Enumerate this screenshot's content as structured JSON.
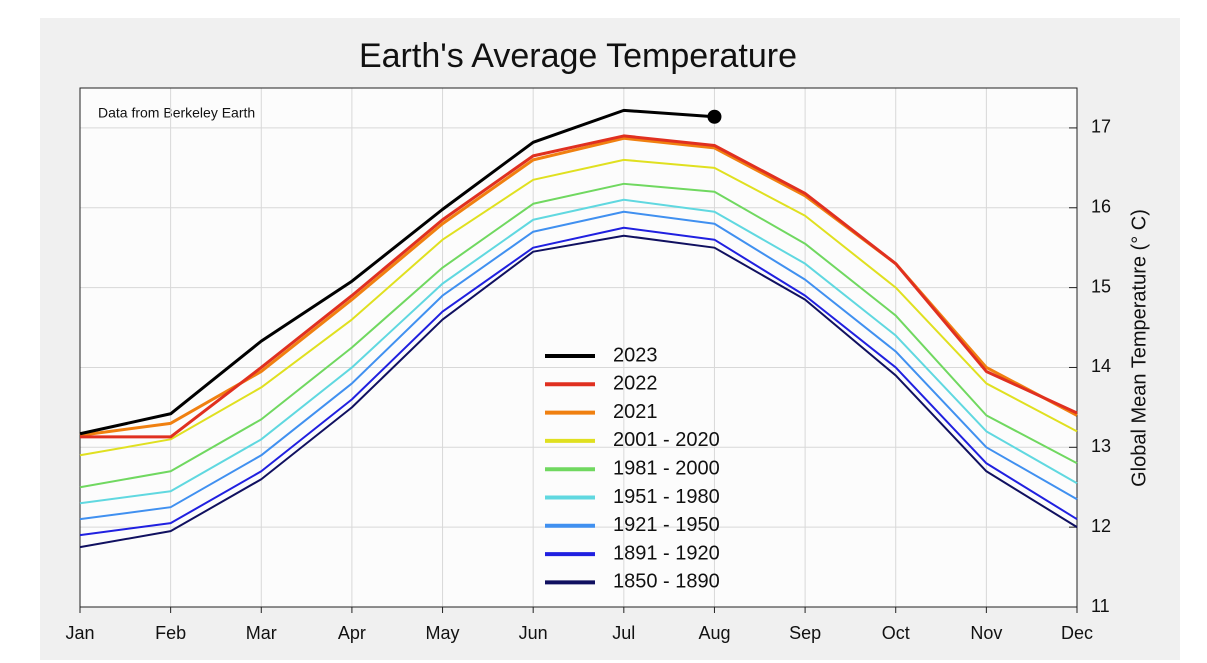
{
  "chart_data": {
    "type": "line",
    "title": "Earth's Average Temperature",
    "annotation": "Data from Berkeley Earth",
    "y_label": "Global Mean Temperature (° C)",
    "categories": [
      "Jan",
      "Feb",
      "Mar",
      "Apr",
      "May",
      "Jun",
      "Jul",
      "Aug",
      "Sep",
      "Oct",
      "Nov",
      "Dec"
    ],
    "ylim": [
      11,
      17.5
    ],
    "yticks": [
      11,
      12,
      13,
      14,
      15,
      16,
      17
    ],
    "y_axis_side": "right",
    "grid": true,
    "legend": "center",
    "series": [
      {
        "name": "2023",
        "color": "#000000",
        "end_marker": true,
        "values": [
          13.17,
          13.42,
          14.33,
          15.08,
          15.98,
          16.82,
          17.22,
          17.14,
          null,
          null,
          null,
          null
        ]
      },
      {
        "name": "2022",
        "color": "#e03020",
        "values": [
          13.13,
          13.13,
          14.0,
          14.9,
          15.85,
          16.65,
          16.9,
          16.78,
          16.18,
          15.3,
          13.95,
          13.43
        ]
      },
      {
        "name": "2021",
        "color": "#f08010",
        "values": [
          13.15,
          13.3,
          13.95,
          14.85,
          15.8,
          16.6,
          16.87,
          16.75,
          16.15,
          15.3,
          14.0,
          13.4
        ]
      },
      {
        "name": "2001 - 2020",
        "color": "#e0e020",
        "values": [
          12.9,
          13.1,
          13.75,
          14.6,
          15.6,
          16.35,
          16.6,
          16.5,
          15.9,
          15.0,
          13.8,
          13.2
        ]
      },
      {
        "name": "1981 - 2000",
        "color": "#70d860",
        "values": [
          12.5,
          12.7,
          13.35,
          14.25,
          15.25,
          16.05,
          16.3,
          16.2,
          15.55,
          14.65,
          13.4,
          12.8
        ]
      },
      {
        "name": "1951 - 1980",
        "color": "#60d8e0",
        "values": [
          12.3,
          12.45,
          13.1,
          14.0,
          15.05,
          15.85,
          16.1,
          15.95,
          15.3,
          14.4,
          13.2,
          12.55
        ]
      },
      {
        "name": "1921 - 1950",
        "color": "#4090f0",
        "values": [
          12.1,
          12.25,
          12.9,
          13.8,
          14.9,
          15.7,
          15.95,
          15.8,
          15.1,
          14.2,
          13.0,
          12.35
        ]
      },
      {
        "name": "1891 - 1920",
        "color": "#2020e0",
        "values": [
          11.9,
          12.05,
          12.7,
          13.6,
          14.7,
          15.5,
          15.75,
          15.6,
          14.9,
          14.0,
          12.8,
          12.1
        ]
      },
      {
        "name": "1850 - 1890",
        "color": "#101060",
        "values": [
          11.75,
          11.95,
          12.6,
          13.5,
          14.6,
          15.45,
          15.65,
          15.5,
          14.85,
          13.9,
          12.7,
          12.0
        ]
      }
    ]
  }
}
